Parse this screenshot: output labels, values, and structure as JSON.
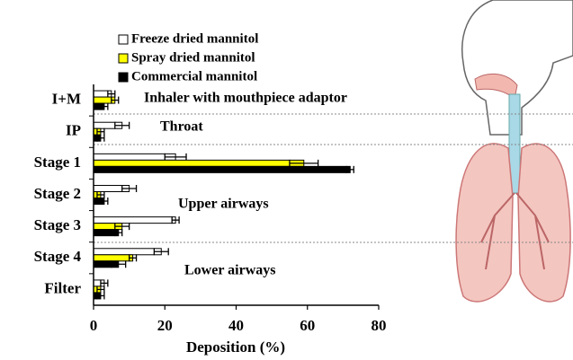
{
  "chart_data": {
    "type": "hbar",
    "xlabel": "Deposition (%)",
    "categories": [
      "I+M",
      "IP",
      "Stage 1",
      "Stage 2",
      "Stage 3",
      "Stage 4",
      "Filter"
    ],
    "series": [
      {
        "name": "Freeze dried mannitol",
        "color": "#ffffff",
        "values": [
          5,
          8,
          23,
          10,
          23,
          19,
          3
        ],
        "errors": [
          1,
          2,
          3,
          2,
          1,
          2,
          1
        ]
      },
      {
        "name": "Spray dried mannitol",
        "color": "#ffff00",
        "values": [
          6,
          2,
          59,
          2,
          8,
          11,
          2
        ],
        "errors": [
          1,
          1,
          4,
          1,
          2,
          1,
          1
        ]
      },
      {
        "name": "Commercial mannitol",
        "color": "#000000",
        "values": [
          3,
          2,
          72,
          3,
          7,
          7,
          2
        ],
        "errors": [
          1,
          1,
          1,
          1,
          1,
          2,
          1
        ]
      }
    ],
    "annotations": [
      "Inhaler with mouthpiece adaptor",
      "Throat",
      "Upper airways",
      "Lower airways"
    ],
    "xlim": [
      0,
      80
    ],
    "xticks": [
      0,
      20,
      40,
      60,
      80
    ]
  }
}
